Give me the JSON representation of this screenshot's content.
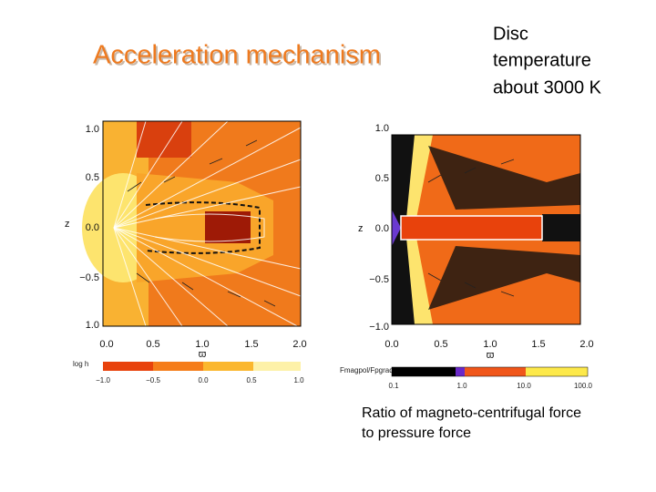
{
  "title": "Acceleration mechanism",
  "note": [
    "Disc",
    "temperature",
    "about 3000 K"
  ],
  "caption": [
    "Ratio of magneto-centrifugal force",
    "to pressure force"
  ],
  "left_plot": {
    "y_label": "z",
    "x_label": "ϖ",
    "y_ticks": [
      "1.0",
      "0.5",
      "0.0",
      "−0.5",
      "1.0"
    ],
    "x_ticks": [
      "0.0",
      "0.5",
      "1.0",
      "1.5",
      "2.0"
    ],
    "colorbar_label": "log h",
    "colorbar_ticks": [
      "−1.0",
      "−0.5",
      "0.0",
      "0.5",
      "1.0"
    ]
  },
  "right_plot": {
    "y_label": "z",
    "x_label": "ϖ",
    "y_ticks": [
      "1.0",
      "0.5",
      "0.0",
      "−0.5",
      "−1.0"
    ],
    "x_ticks": [
      "0.0",
      "0.5",
      "1.0",
      "1.5",
      "2.0"
    ],
    "colorbar_label": "Fmagpol/Fpgrad",
    "colorbar_ticks": [
      "0.1",
      "1.0",
      "10.0",
      "100.0"
    ]
  }
}
